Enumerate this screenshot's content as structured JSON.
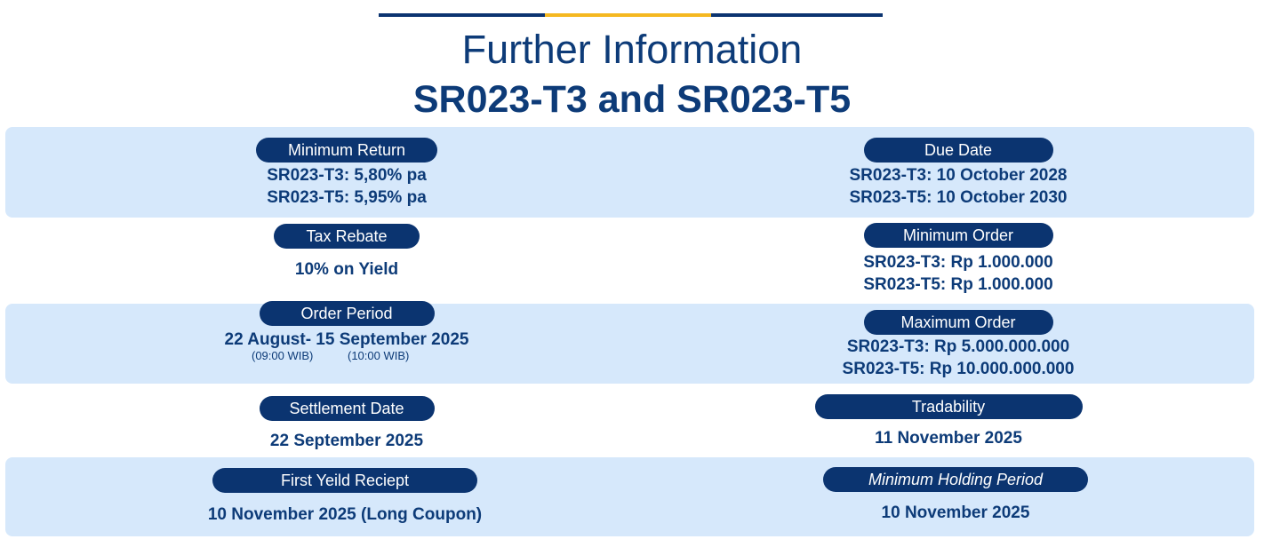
{
  "colors": {
    "navy": "#0b3470",
    "gold": "#f5b820",
    "band": "#d6e8fb"
  },
  "header": {
    "title": "Further Information",
    "subtitle": "SR023-T3 and SR023-T5"
  },
  "items": {
    "minimum_return": {
      "label": "Minimum Return",
      "lines": [
        "SR023-T3: 5,80% pa",
        "SR023-T5: 5,95% pa"
      ]
    },
    "due_date": {
      "label": "Due Date",
      "lines": [
        "SR023-T3: 10 October 2028",
        "SR023-T5: 10 October 2030"
      ]
    },
    "tax_rebate": {
      "label": "Tax Rebate",
      "lines": [
        "10% on Yield"
      ]
    },
    "minimum_order": {
      "label": "Minimum Order",
      "lines": [
        "SR023-T3: Rp 1.000.000",
        "SR023-T5: Rp 1.000.000"
      ]
    },
    "order_period": {
      "label": "Order Period",
      "lines": [
        "22 August- 15 September 2025"
      ],
      "start_time": "(09:00 WIB)",
      "end_time": "(10:00 WIB)"
    },
    "maximum_order": {
      "label": "Maximum Order",
      "lines": [
        "SR023-T3: Rp 5.000.000.000",
        "SR023-T5: Rp 10.000.000.000"
      ]
    },
    "settlement_date": {
      "label": "Settlement Date",
      "lines": [
        "22 September 2025"
      ]
    },
    "tradability": {
      "label": "Tradability",
      "lines": [
        "11 November 2025"
      ]
    },
    "first_yield_receipt": {
      "label": "First Yeild Reciept",
      "lines": [
        "10 November 2025 (Long Coupon)"
      ]
    },
    "minimum_holding_period": {
      "label": "Minimum Holding Period",
      "lines": [
        "10 November 2025"
      ]
    }
  }
}
